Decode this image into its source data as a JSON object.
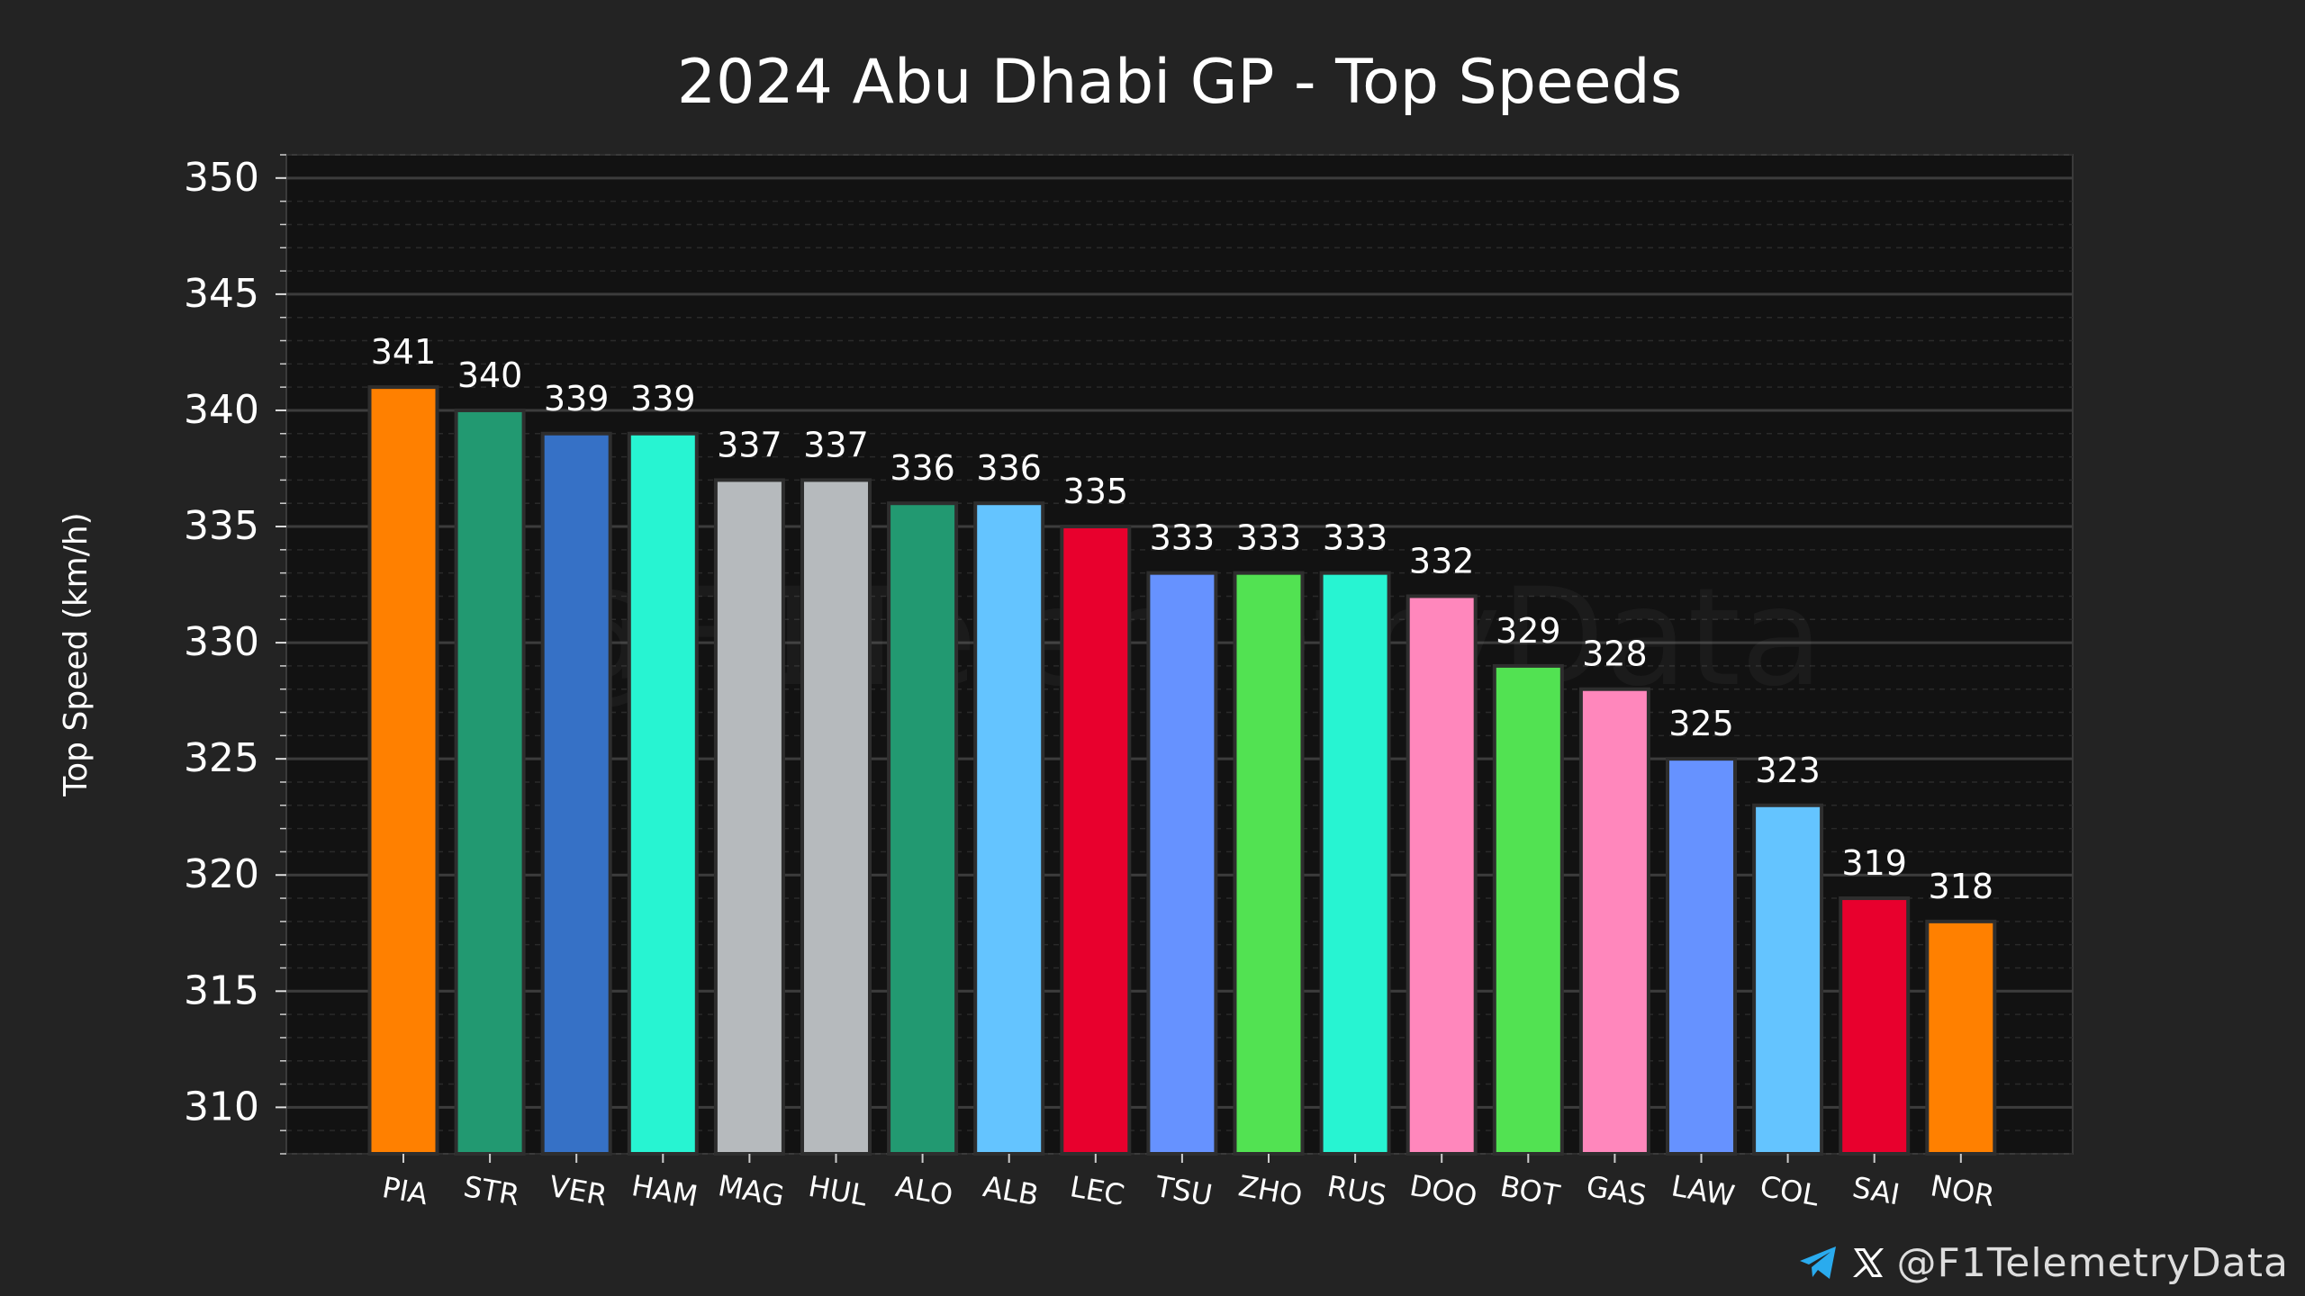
{
  "chart_data": {
    "type": "bar",
    "title": "2024 Abu Dhabi GP - Top Speeds",
    "xlabel": "",
    "ylabel": "Top Speed (km/h)",
    "ylim": [
      308,
      351
    ],
    "yticks": [
      310,
      315,
      320,
      325,
      330,
      335,
      340,
      345,
      350
    ],
    "grid": true,
    "categories": [
      "PIA",
      "STR",
      "VER",
      "HAM",
      "MAG",
      "HUL",
      "ALO",
      "ALB",
      "LEC",
      "TSU",
      "ZHO",
      "RUS",
      "DOO",
      "BOT",
      "GAS",
      "LAW",
      "COL",
      "SAI",
      "NOR"
    ],
    "values": [
      341,
      340,
      339,
      339,
      337,
      337,
      336,
      336,
      335,
      333,
      333,
      333,
      332,
      329,
      328,
      325,
      323,
      319,
      318
    ],
    "colors": [
      "#FF8000",
      "#229971",
      "#3671C6",
      "#27F4D2",
      "#B6BABD",
      "#B6BABD",
      "#229971",
      "#64C4FF",
      "#E8002D",
      "#6692FF",
      "#52E252",
      "#27F4D2",
      "#FF87BC",
      "#52E252",
      "#FF87BC",
      "#6692FF",
      "#64C4FF",
      "#E8002D",
      "#FF8000"
    ],
    "watermark": "@F1TelemetryData"
  },
  "footer": {
    "telegram_icon": "telegram-icon",
    "x_icon": "x-logo-icon",
    "handle": "@F1TelemetryData"
  },
  "colors": {
    "background": "#232323",
    "plot_background": "#121212",
    "text": "#ffffff"
  }
}
